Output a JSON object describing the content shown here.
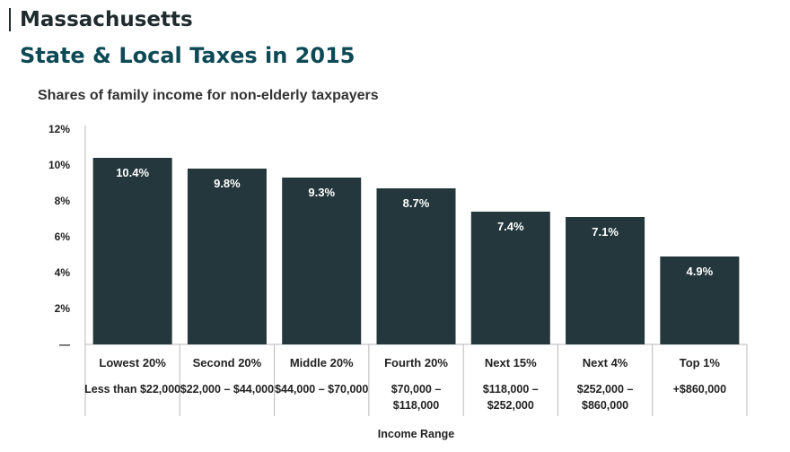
{
  "header": {
    "state": "Massachusetts",
    "title": "State & Local Taxes in 2015"
  },
  "colors": {
    "bar": "#24373d",
    "bar_label": "#ffffff",
    "text": "#222222",
    "axis": "#b8b8b8"
  },
  "chart_data": {
    "type": "bar",
    "title": "Shares of family income for non-elderly taxpayers",
    "xlabel": "Income Range",
    "ylabel": "",
    "categories": [
      "Lowest 20%",
      "Second 20%",
      "Middle 20%",
      "Fourth 20%",
      "Next 15%",
      "Next 4%",
      "Top 1%"
    ],
    "ranges": [
      [
        "Less than $22,000"
      ],
      [
        "$22,000 – $44,000"
      ],
      [
        "$44,000 – $70,000"
      ],
      [
        "$70,000 –",
        "$118,000"
      ],
      [
        "$118,000 –",
        "$252,000"
      ],
      [
        "$252,000 –",
        "$860,000"
      ],
      [
        "+$860,000"
      ]
    ],
    "values": [
      10.4,
      9.8,
      9.3,
      8.7,
      7.4,
      7.1,
      4.9
    ],
    "value_labels": [
      "10.4%",
      "9.8%",
      "9.3%",
      "8.7%",
      "7.4%",
      "7.1%",
      "4.9%"
    ],
    "yticks": [
      "—",
      "2%",
      "4%",
      "6%",
      "8%",
      "10%",
      "12%"
    ],
    "ylim": [
      0,
      12
    ],
    "grid": false
  }
}
